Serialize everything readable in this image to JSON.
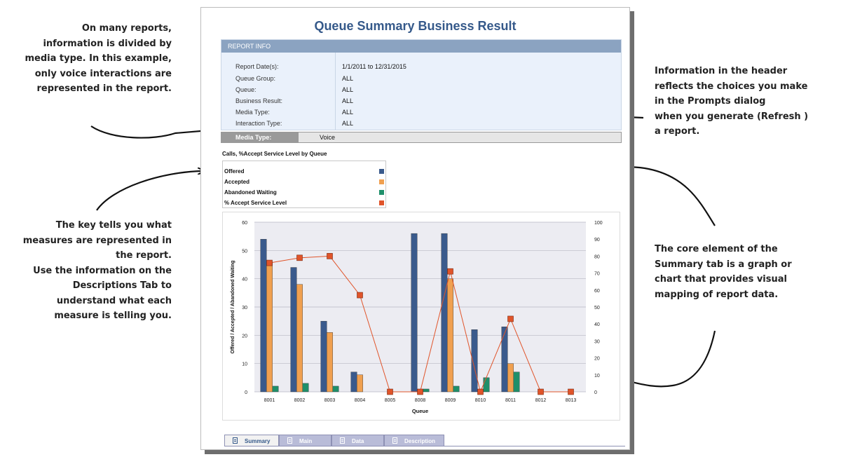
{
  "annotations": {
    "media_note": [
      "On many reports,",
      "information is divided by",
      "media type. In this example,",
      "only voice interactions are",
      "represented in the report."
    ],
    "key_note": [
      "The key tells you what",
      "measures are represented in",
      "the report.",
      "Use the information on the",
      "Descriptions Tab to",
      "understand what each",
      "measure is telling you."
    ],
    "header_note": [
      "Information in the header",
      "reflects the choices you make",
      "in the Prompts dialog",
      "when you generate (Refresh )",
      "a report."
    ],
    "chart_note": [
      "The core element of the",
      "Summary tab is a graph or",
      "chart that provides visual",
      "mapping of report data."
    ]
  },
  "report": {
    "title": "Queue Summary Business Result",
    "info_header": "REPORT INFO",
    "info_rows": [
      {
        "label": "Report Date(s):",
        "value": "1/1/2011  to  12/31/2015"
      },
      {
        "label": "Queue Group:",
        "value": "ALL"
      },
      {
        "label": "Queue:",
        "value": "ALL"
      },
      {
        "label": "Business Result:",
        "value": "ALL"
      },
      {
        "label": "Media Type:",
        "value": "ALL"
      },
      {
        "label": "Interaction Type:",
        "value": "ALL"
      }
    ],
    "media_type_label": "Media Type:",
    "media_type_value": "Voice",
    "chart_title": "Calls, %Accept Service Level by Queue",
    "legend": [
      {
        "label": "Offered",
        "color": "#3a5a8c"
      },
      {
        "label": "Accepted",
        "color": "#f0a050"
      },
      {
        "label": "Abandoned Waiting",
        "color": "#1f8f6a"
      },
      {
        "label": "% Accept Service Level",
        "color": "#e0542a"
      }
    ],
    "tabs": [
      {
        "label": "Summary",
        "active": true
      },
      {
        "label": "Main",
        "active": false
      },
      {
        "label": "Data",
        "active": false
      },
      {
        "label": "Description",
        "active": false
      }
    ]
  },
  "chart_data": {
    "type": "bar",
    "title": "",
    "xlabel": "Queue",
    "ylabel": "Offered / Accepted / Abandoned Waiting",
    "ylim": [
      0,
      60
    ],
    "y2lim": [
      0,
      100
    ],
    "yticks": [
      0,
      10,
      20,
      30,
      40,
      50,
      60
    ],
    "y2ticks": [
      0,
      10,
      20,
      30,
      40,
      50,
      60,
      70,
      80,
      90,
      100
    ],
    "categories": [
      "8001",
      "8002",
      "8003",
      "8004",
      "8005",
      "8008",
      "8009",
      "8010",
      "8011",
      "8012",
      "8013"
    ],
    "series": [
      {
        "name": "Offered",
        "type": "bar",
        "axis": "left",
        "color": "#3a5a8c",
        "values": [
          54,
          44,
          25,
          7,
          0,
          56,
          56,
          22,
          23,
          0,
          0
        ]
      },
      {
        "name": "Accepted",
        "type": "bar",
        "axis": "left",
        "color": "#f0a050",
        "values": [
          46,
          38,
          21,
          6,
          0,
          0,
          40,
          0,
          10,
          0,
          0
        ]
      },
      {
        "name": "Abandoned Waiting",
        "type": "bar",
        "axis": "left",
        "color": "#1f8f6a",
        "values": [
          2,
          3,
          2,
          0,
          0,
          1,
          2,
          5,
          7,
          0,
          0
        ]
      },
      {
        "name": "% Accept Service Level",
        "type": "line",
        "axis": "right",
        "color": "#e0542a",
        "values": [
          76,
          79,
          80,
          57,
          0,
          0,
          71,
          0,
          43,
          0,
          0
        ]
      }
    ],
    "grid": true,
    "background": "#ececf2"
  }
}
